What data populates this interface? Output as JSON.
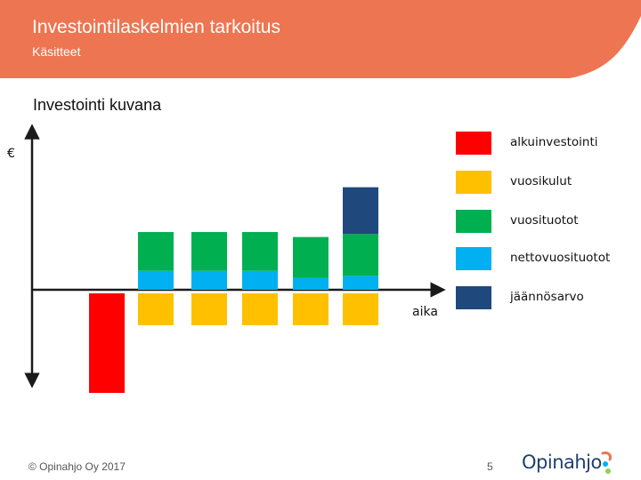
{
  "header": {
    "title": "Investointilaskelmien tarkoitus",
    "subtitle": "Käsitteet",
    "color": "#ee7552"
  },
  "section_title": "Investointi kuvana",
  "diagram": {
    "y_axis_label": "€",
    "x_axis_label": "aika",
    "colors": {
      "alkuinvestointi": "#ff0000",
      "vuosikulut": "#ffc000",
      "vuosituotot": "#00b050",
      "nettovuosituotot": "#00b0f0",
      "jaannosarvo": "#1f497d"
    },
    "initial_investment": 1.0,
    "years": [
      {
        "costs": 0.32,
        "returns": 0.58,
        "net": 0.19,
        "residual": 0
      },
      {
        "costs": 0.32,
        "returns": 0.58,
        "net": 0.19,
        "residual": 0
      },
      {
        "costs": 0.32,
        "returns": 0.58,
        "net": 0.19,
        "residual": 0
      },
      {
        "costs": 0.32,
        "returns": 0.53,
        "net": 0.12,
        "residual": 0
      },
      {
        "costs": 0.32,
        "returns": 0.56,
        "net": 0.14,
        "residual": 0.47
      }
    ]
  },
  "legend": [
    {
      "label": "alkuinvestointi",
      "color": "#ff0000"
    },
    {
      "label": "vuosikulut",
      "color": "#ffc000"
    },
    {
      "label": "vuosituotot",
      "color": "#00b050"
    },
    {
      "label": "nettovuosituotot",
      "color": "#00b0f0"
    },
    {
      "label": "jäännösarvo",
      "color": "#1f497d"
    }
  ],
  "footer": {
    "copyright": "© Opinahjo Oy 2017",
    "page_number": "5",
    "logo_text": "Opinahjo"
  }
}
